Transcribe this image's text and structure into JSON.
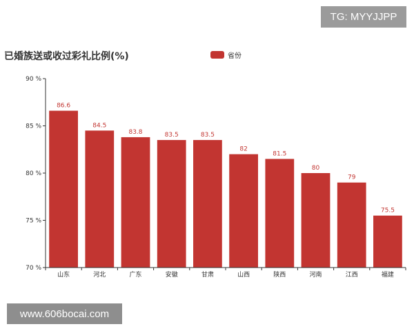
{
  "watermark_top": "TG: MYYJJPP",
  "watermark_bottom": "www.606bocai.com",
  "colors": {
    "bar": "#c23531",
    "axis": "#333333",
    "label": "#c23531"
  },
  "chart_data": {
    "type": "bar",
    "title": "已婚族送或收过彩礼比例(%)",
    "legend": [
      "省份"
    ],
    "legend_position": "top-center",
    "categories": [
      "山东",
      "河北",
      "广东",
      "安徽",
      "甘肃",
      "山西",
      "陕西",
      "河南",
      "江西",
      "福建"
    ],
    "series": [
      {
        "name": "省份",
        "values": [
          86.6,
          84.5,
          83.8,
          83.5,
          83.5,
          82,
          81.5,
          80,
          79,
          75.5
        ]
      }
    ],
    "ylim": [
      70,
      90
    ],
    "yticks": [
      70,
      75,
      80,
      85,
      90
    ],
    "ytick_suffix": " %",
    "grid": false,
    "xlabel": "",
    "ylabel": ""
  }
}
